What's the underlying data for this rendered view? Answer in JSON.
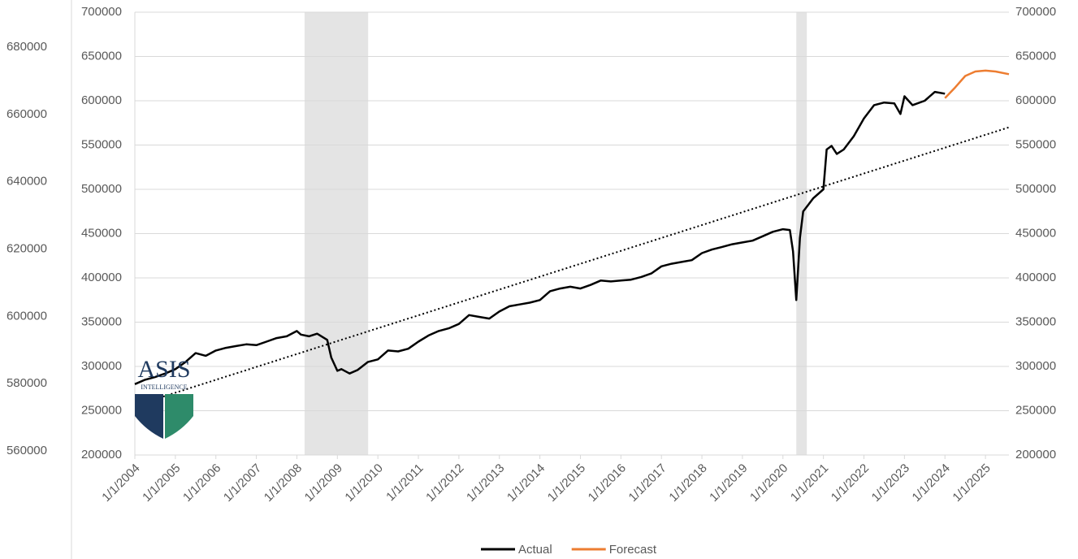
{
  "chart_data": {
    "type": "line",
    "xlim": [
      2004,
      2025.58
    ],
    "xticks": [
      {
        "value": 2004,
        "label": "1/1/2004"
      },
      {
        "value": 2005,
        "label": "1/1/2005"
      },
      {
        "value": 2006,
        "label": "1/1/2006"
      },
      {
        "value": 2007,
        "label": "1/1/2007"
      },
      {
        "value": 2008,
        "label": "1/1/2008"
      },
      {
        "value": 2009,
        "label": "1/1/2009"
      },
      {
        "value": 2010,
        "label": "1/1/2010"
      },
      {
        "value": 2011,
        "label": "1/1/2011"
      },
      {
        "value": 2012,
        "label": "1/1/2012"
      },
      {
        "value": 2013,
        "label": "1/1/2013"
      },
      {
        "value": 2014,
        "label": "1/1/2014"
      },
      {
        "value": 2015,
        "label": "1/1/2015"
      },
      {
        "value": 2016,
        "label": "1/1/2016"
      },
      {
        "value": 2017,
        "label": "1/1/2017"
      },
      {
        "value": 2018,
        "label": "1/1/2018"
      },
      {
        "value": 2019,
        "label": "1/1/2019"
      },
      {
        "value": 2020,
        "label": "1/1/2020"
      },
      {
        "value": 2021,
        "label": "1/1/2021"
      },
      {
        "value": 2022,
        "label": "1/1/2022"
      },
      {
        "value": 2023,
        "label": "1/1/2023"
      },
      {
        "value": 2024,
        "label": "1/1/2024"
      },
      {
        "value": 2025,
        "label": "1/1/2025"
      }
    ],
    "ylim": [
      200000,
      700000
    ],
    "yticks": [
      200000,
      250000,
      300000,
      350000,
      400000,
      450000,
      500000,
      550000,
      600000,
      650000,
      700000
    ],
    "y2lim": [
      200000,
      700000
    ],
    "y2ticks": [
      200000,
      250000,
      300000,
      350000,
      400000,
      450000,
      500000,
      550000,
      600000,
      650000,
      700000
    ],
    "y3lim": [
      560000,
      680000
    ],
    "y3ticks": [
      560000,
      580000,
      600000,
      620000,
      640000,
      660000,
      680000
    ],
    "grid": true,
    "legend": "bottom",
    "shaded_ranges": [
      [
        2008.19,
        2009.76
      ],
      [
        2020.33,
        2020.59
      ]
    ],
    "shade_color": "#e4e4e4",
    "trendline": {
      "x": [
        2004.7,
        2025.58
      ],
      "values": [
        266000,
        570000
      ],
      "color": "#000000"
    },
    "series": [
      {
        "name": "Actual",
        "color": "#000000",
        "x": [
          2004.0,
          2004.25,
          2004.5,
          2004.75,
          2005.0,
          2005.25,
          2005.5,
          2005.75,
          2006.0,
          2006.25,
          2006.5,
          2006.75,
          2007.0,
          2007.25,
          2007.5,
          2007.75,
          2008.0,
          2008.1,
          2008.3,
          2008.5,
          2008.75,
          2008.85,
          2009.0,
          2009.1,
          2009.3,
          2009.5,
          2009.75,
          2010.0,
          2010.25,
          2010.5,
          2010.75,
          2011.0,
          2011.25,
          2011.5,
          2011.75,
          2012.0,
          2012.25,
          2012.5,
          2012.75,
          2013.0,
          2013.25,
          2013.5,
          2013.75,
          2014.0,
          2014.25,
          2014.5,
          2014.75,
          2015.0,
          2015.25,
          2015.5,
          2015.75,
          2016.0,
          2016.25,
          2016.5,
          2016.75,
          2017.0,
          2017.25,
          2017.5,
          2017.75,
          2018.0,
          2018.25,
          2018.5,
          2018.75,
          2019.0,
          2019.25,
          2019.5,
          2019.75,
          2020.0,
          2020.17,
          2020.25,
          2020.33,
          2020.42,
          2020.5,
          2020.75,
          2021.0,
          2021.08,
          2021.2,
          2021.33,
          2021.5,
          2021.75,
          2022.0,
          2022.25,
          2022.5,
          2022.75,
          2022.9,
          2023.0,
          2023.2,
          2023.5,
          2023.75,
          2024.0
        ],
        "values": [
          280000,
          285000,
          288000,
          292000,
          297000,
          305000,
          315000,
          312000,
          318000,
          321000,
          323000,
          325000,
          324000,
          328000,
          332000,
          334000,
          340000,
          336000,
          334000,
          337000,
          330000,
          310000,
          295000,
          297000,
          292000,
          296000,
          305000,
          308000,
          318000,
          317000,
          320000,
          328000,
          335000,
          340000,
          343000,
          348000,
          358000,
          356000,
          354000,
          362000,
          368000,
          370000,
          372000,
          375000,
          385000,
          388000,
          390000,
          388000,
          392000,
          397000,
          396000,
          397000,
          398000,
          401000,
          405000,
          413000,
          416000,
          418000,
          420000,
          428000,
          432000,
          435000,
          438000,
          440000,
          442000,
          447000,
          452000,
          455000,
          454000,
          430000,
          375000,
          445000,
          475000,
          490000,
          500000,
          545000,
          549000,
          540000,
          545000,
          560000,
          580000,
          595000,
          598000,
          597000,
          585000,
          605000,
          595000,
          600000,
          610000,
          608000
        ]
      },
      {
        "name": "Forecast",
        "color": "#ed7d31",
        "x": [
          2024.0,
          2024.25,
          2024.5,
          2024.75,
          2025.0,
          2025.25,
          2025.58
        ],
        "values": [
          603000,
          615000,
          628000,
          633000,
          634000,
          633000,
          630000
        ]
      }
    ]
  },
  "logo": {
    "name": "ASIS",
    "tagline": "INTELLIGENCE"
  }
}
